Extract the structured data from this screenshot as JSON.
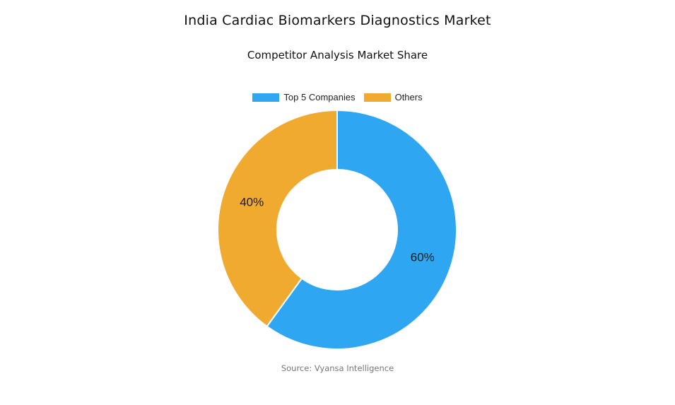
{
  "title": "India Cardiac Biomarkers Diagnostics Market",
  "subtitle": "Competitor Analysis Market Share",
  "source": "Source: Vyansa Intelligence",
  "chart_data": {
    "type": "pie",
    "variant": "donut",
    "title": "India Cardiac Biomarkers Diagnostics Market",
    "subtitle": "Competitor Analysis Market Share",
    "legend_position": "top-center",
    "categories": [
      "Top 5 Companies",
      "Others"
    ],
    "values": [
      60,
      40
    ],
    "labels": [
      "60%",
      "40%"
    ],
    "colors": [
      "#2ea6f1",
      "#f0aa30"
    ]
  }
}
